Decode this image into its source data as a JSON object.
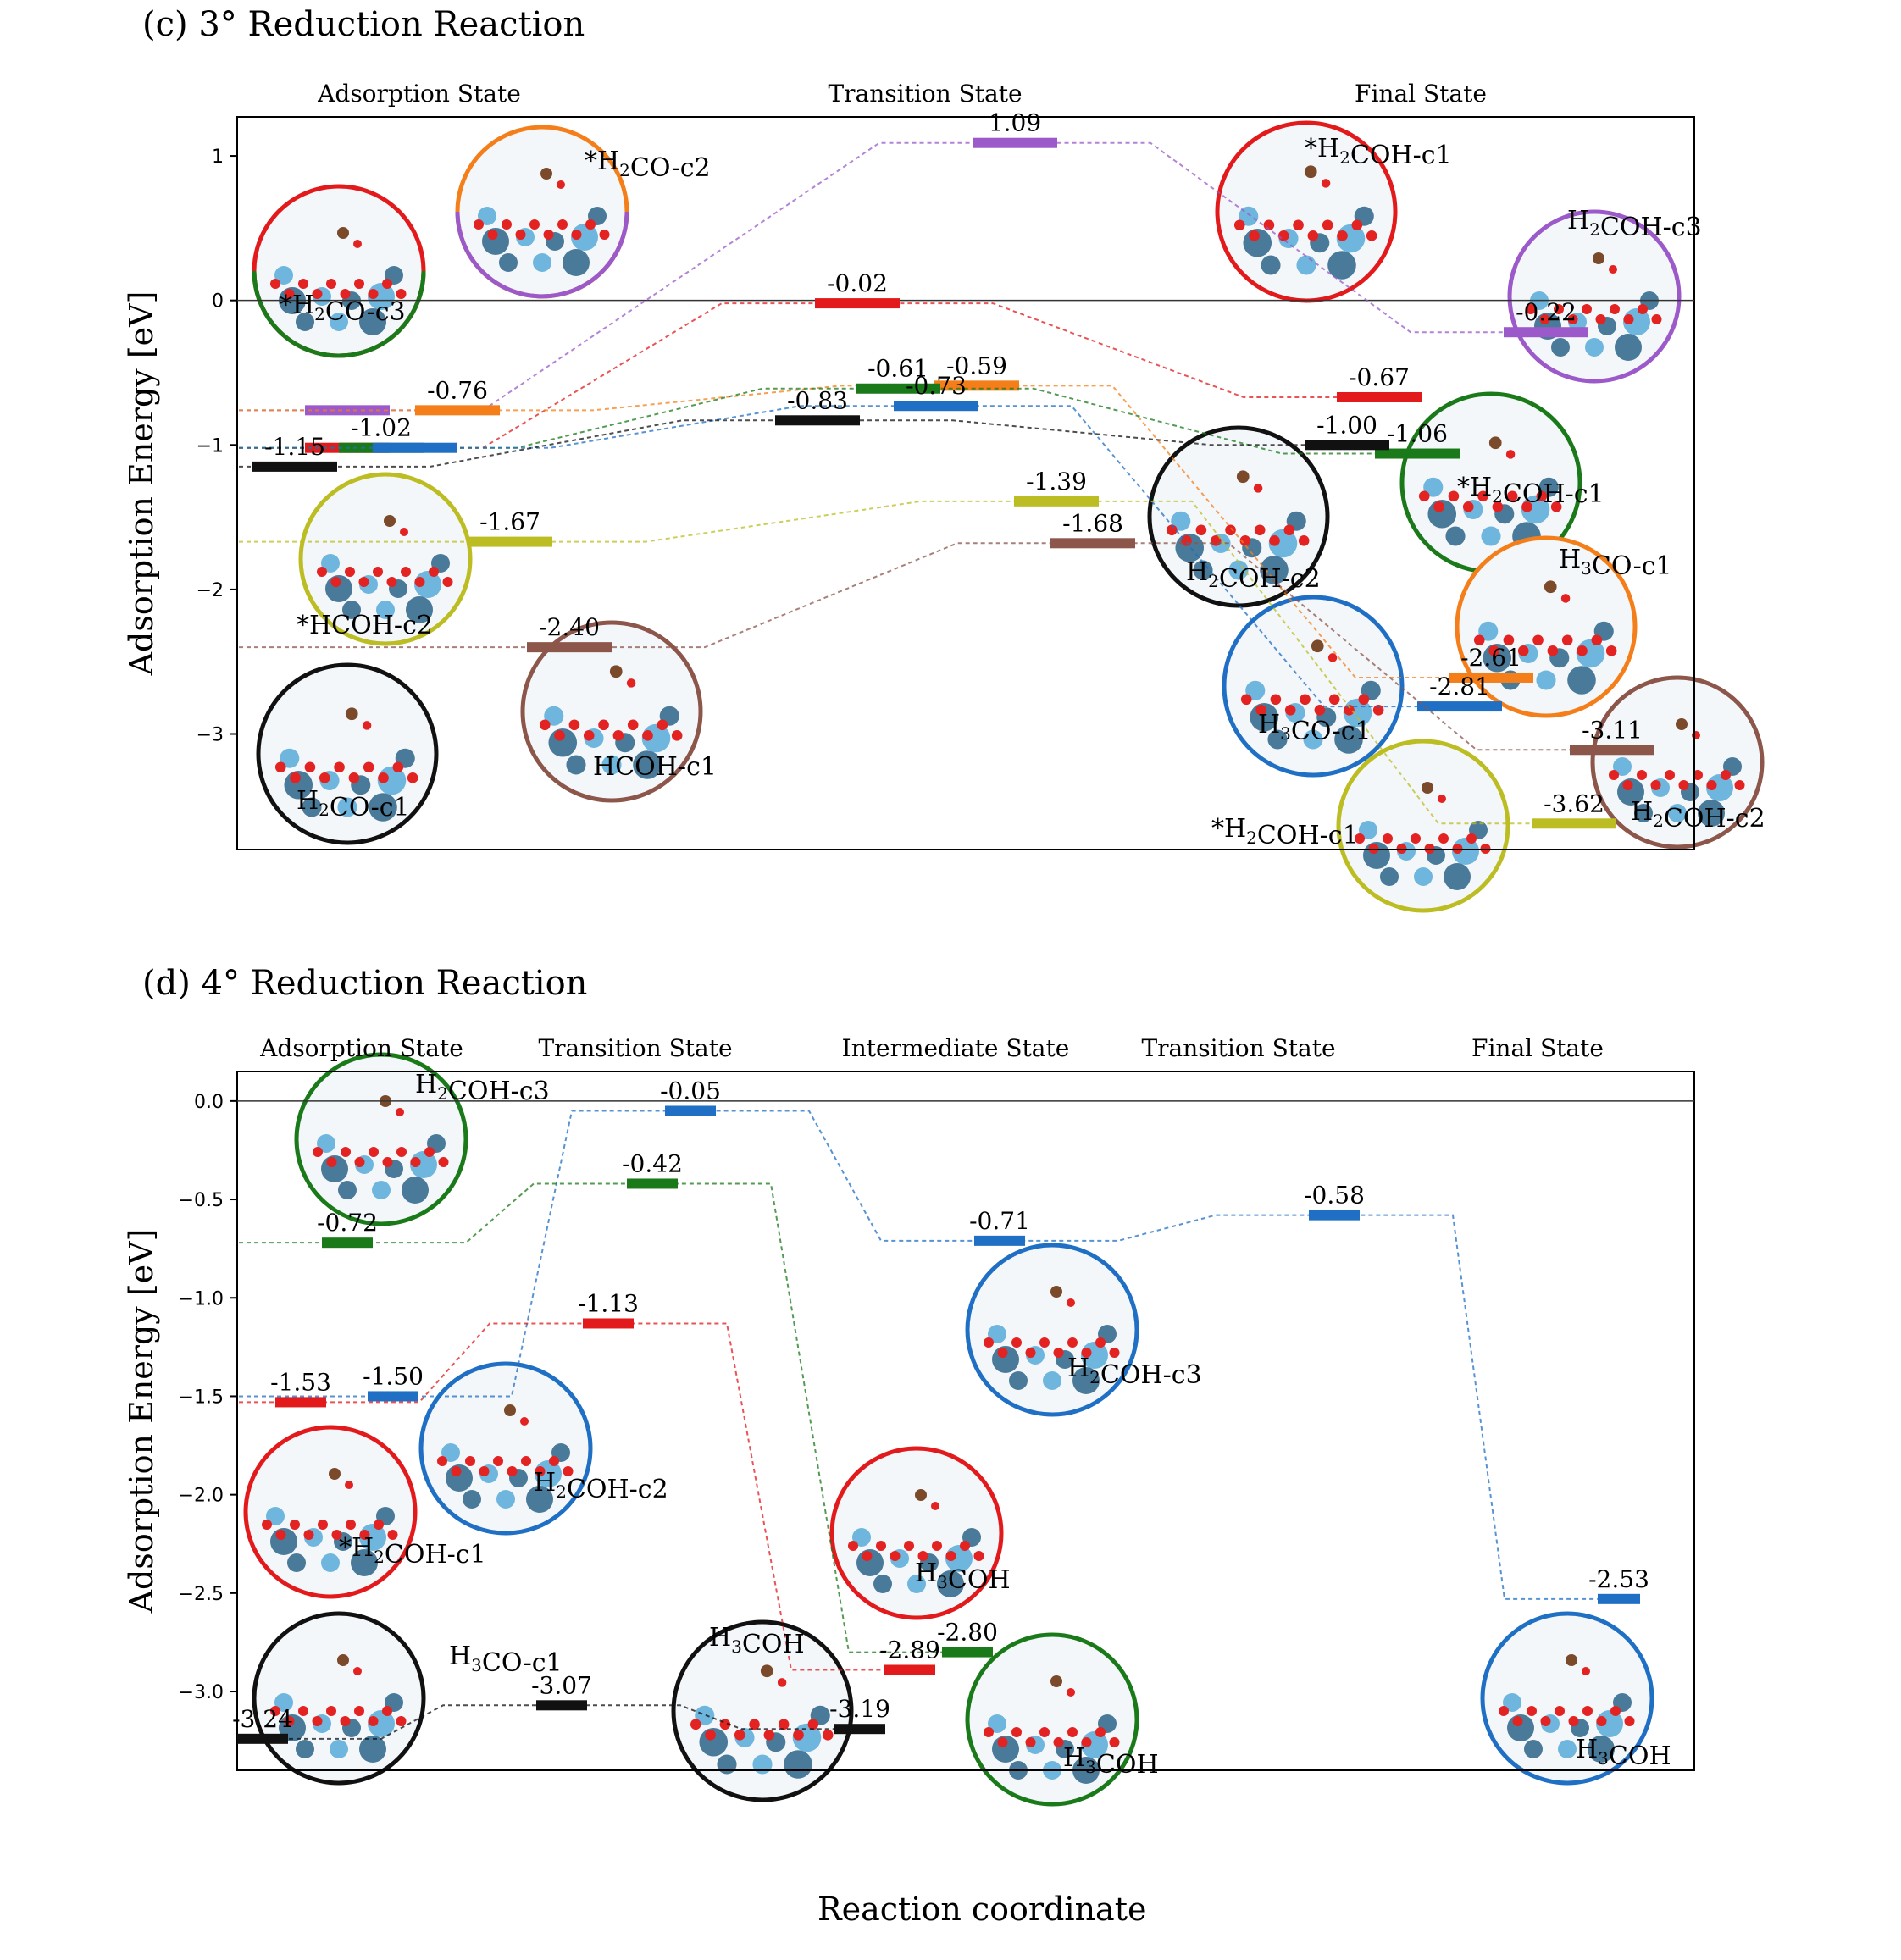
{
  "figure": {
    "xlabel": "Reaction coordinate",
    "panel_c_title": "(c) 3° Reduction Reaction",
    "panel_d_title": "(d) 4° Reduction Reaction"
  },
  "colors": {
    "red": "#e31a1c",
    "green": "#1a7a1a",
    "blue": "#1f6fc4",
    "orange": "#f47f1a",
    "purple": "#9b59c9",
    "black": "#111111",
    "olive": "#bcbd22",
    "brown": "#8c564b",
    "dark_green": "#2e8b2e"
  },
  "chart_data": [
    {
      "type": "energy-diagram",
      "title": "(c) 3° Reduction Reaction",
      "ylabel": "Adsorption Energy [eV]",
      "xlabel": "Reaction coordinate",
      "ylim": [
        -3.8,
        1.27
      ],
      "yticks": [
        1,
        0,
        -1,
        -2,
        -3
      ],
      "stages": [
        "Adsorption State",
        "Transition State",
        "Final State"
      ],
      "series": [
        {
          "color": "red",
          "values": [
            -1.02,
            -0.02,
            -0.67
          ],
          "labels": [
            "",
            "-0.02",
            "-0.67"
          ]
        },
        {
          "color": "purple",
          "values": [
            -0.76,
            1.09,
            -0.22
          ],
          "labels": [
            "",
            "1.09",
            "-0.22"
          ]
        },
        {
          "color": "orange",
          "values": [
            -0.76,
            -0.59,
            -2.61
          ],
          "labels": [
            "-0.76",
            "-0.59",
            "-2.61"
          ]
        },
        {
          "color": "green",
          "values": [
            -1.02,
            -0.61,
            -1.06
          ],
          "labels": [
            "-1.02",
            "-0.61",
            "-1.06"
          ]
        },
        {
          "color": "blue",
          "values": [
            -1.02,
            -0.73,
            -2.81
          ],
          "labels": [
            "",
            "-0.73",
            "-2.81"
          ]
        },
        {
          "color": "black",
          "values": [
            -1.15,
            -0.83,
            -1.0
          ],
          "labels": [
            "-1.15",
            "-0.83",
            "-1.00"
          ]
        },
        {
          "color": "olive",
          "values": [
            -1.67,
            -1.39,
            -3.62
          ],
          "labels": [
            "-1.67",
            "-1.39",
            "-3.62"
          ]
        },
        {
          "color": "brown",
          "values": [
            -2.4,
            -1.68,
            -3.11
          ],
          "labels": [
            "-2.40",
            "-1.68",
            "-3.11"
          ]
        }
      ],
      "structures": [
        "*H2CO-c3",
        "*H2CO-c2",
        "*HCOH-c2",
        "H2CO-c1",
        "HCOH-c1",
        "*H2COH-c1",
        "H2COH-c3",
        "H2COH-c2",
        "*H2COH-c1",
        "H3CO-c1",
        "H3CO-c1",
        "*H2COH-c1",
        "H2COH-c2"
      ]
    },
    {
      "type": "energy-diagram",
      "title": "(d) 4° Reduction Reaction",
      "ylabel": "Adsorption Energy [eV]",
      "xlabel": "Reaction coordinate",
      "ylim": [
        -3.4,
        0.15
      ],
      "yticks": [
        0.0,
        -0.5,
        -1.0,
        -1.5,
        -2.0,
        -2.5,
        -3.0
      ],
      "stages": [
        "Adsorption State",
        "Transition State",
        "Intermediate State",
        "Transition State",
        "Final State"
      ],
      "series": [
        {
          "color": "blue",
          "values": [
            -1.5,
            -0.05,
            -0.71,
            -0.58,
            -2.53
          ],
          "labels": [
            "-1.50",
            "-0.05",
            "-0.71",
            "-0.58",
            "-2.53"
          ]
        },
        {
          "color": "green",
          "values": [
            -0.72,
            -0.42,
            -2.8
          ],
          "labels": [
            "-0.72",
            "-0.42",
            "-2.80"
          ]
        },
        {
          "color": "red",
          "values": [
            -1.53,
            -1.13,
            -2.89
          ],
          "labels": [
            "-1.53",
            "-1.13",
            "-2.89"
          ]
        },
        {
          "color": "black",
          "values": [
            -3.24,
            -3.07,
            -3.19
          ],
          "labels": [
            "-3.24",
            "-3.07",
            "-3.19"
          ]
        }
      ],
      "structures": [
        "H2COH-c3",
        "*H2COH-c1",
        "H2COH-c2",
        "H3CO-c1",
        "H2COH-c3",
        "H3COH",
        "H3COH",
        "H3COH",
        "H3COH"
      ]
    }
  ]
}
